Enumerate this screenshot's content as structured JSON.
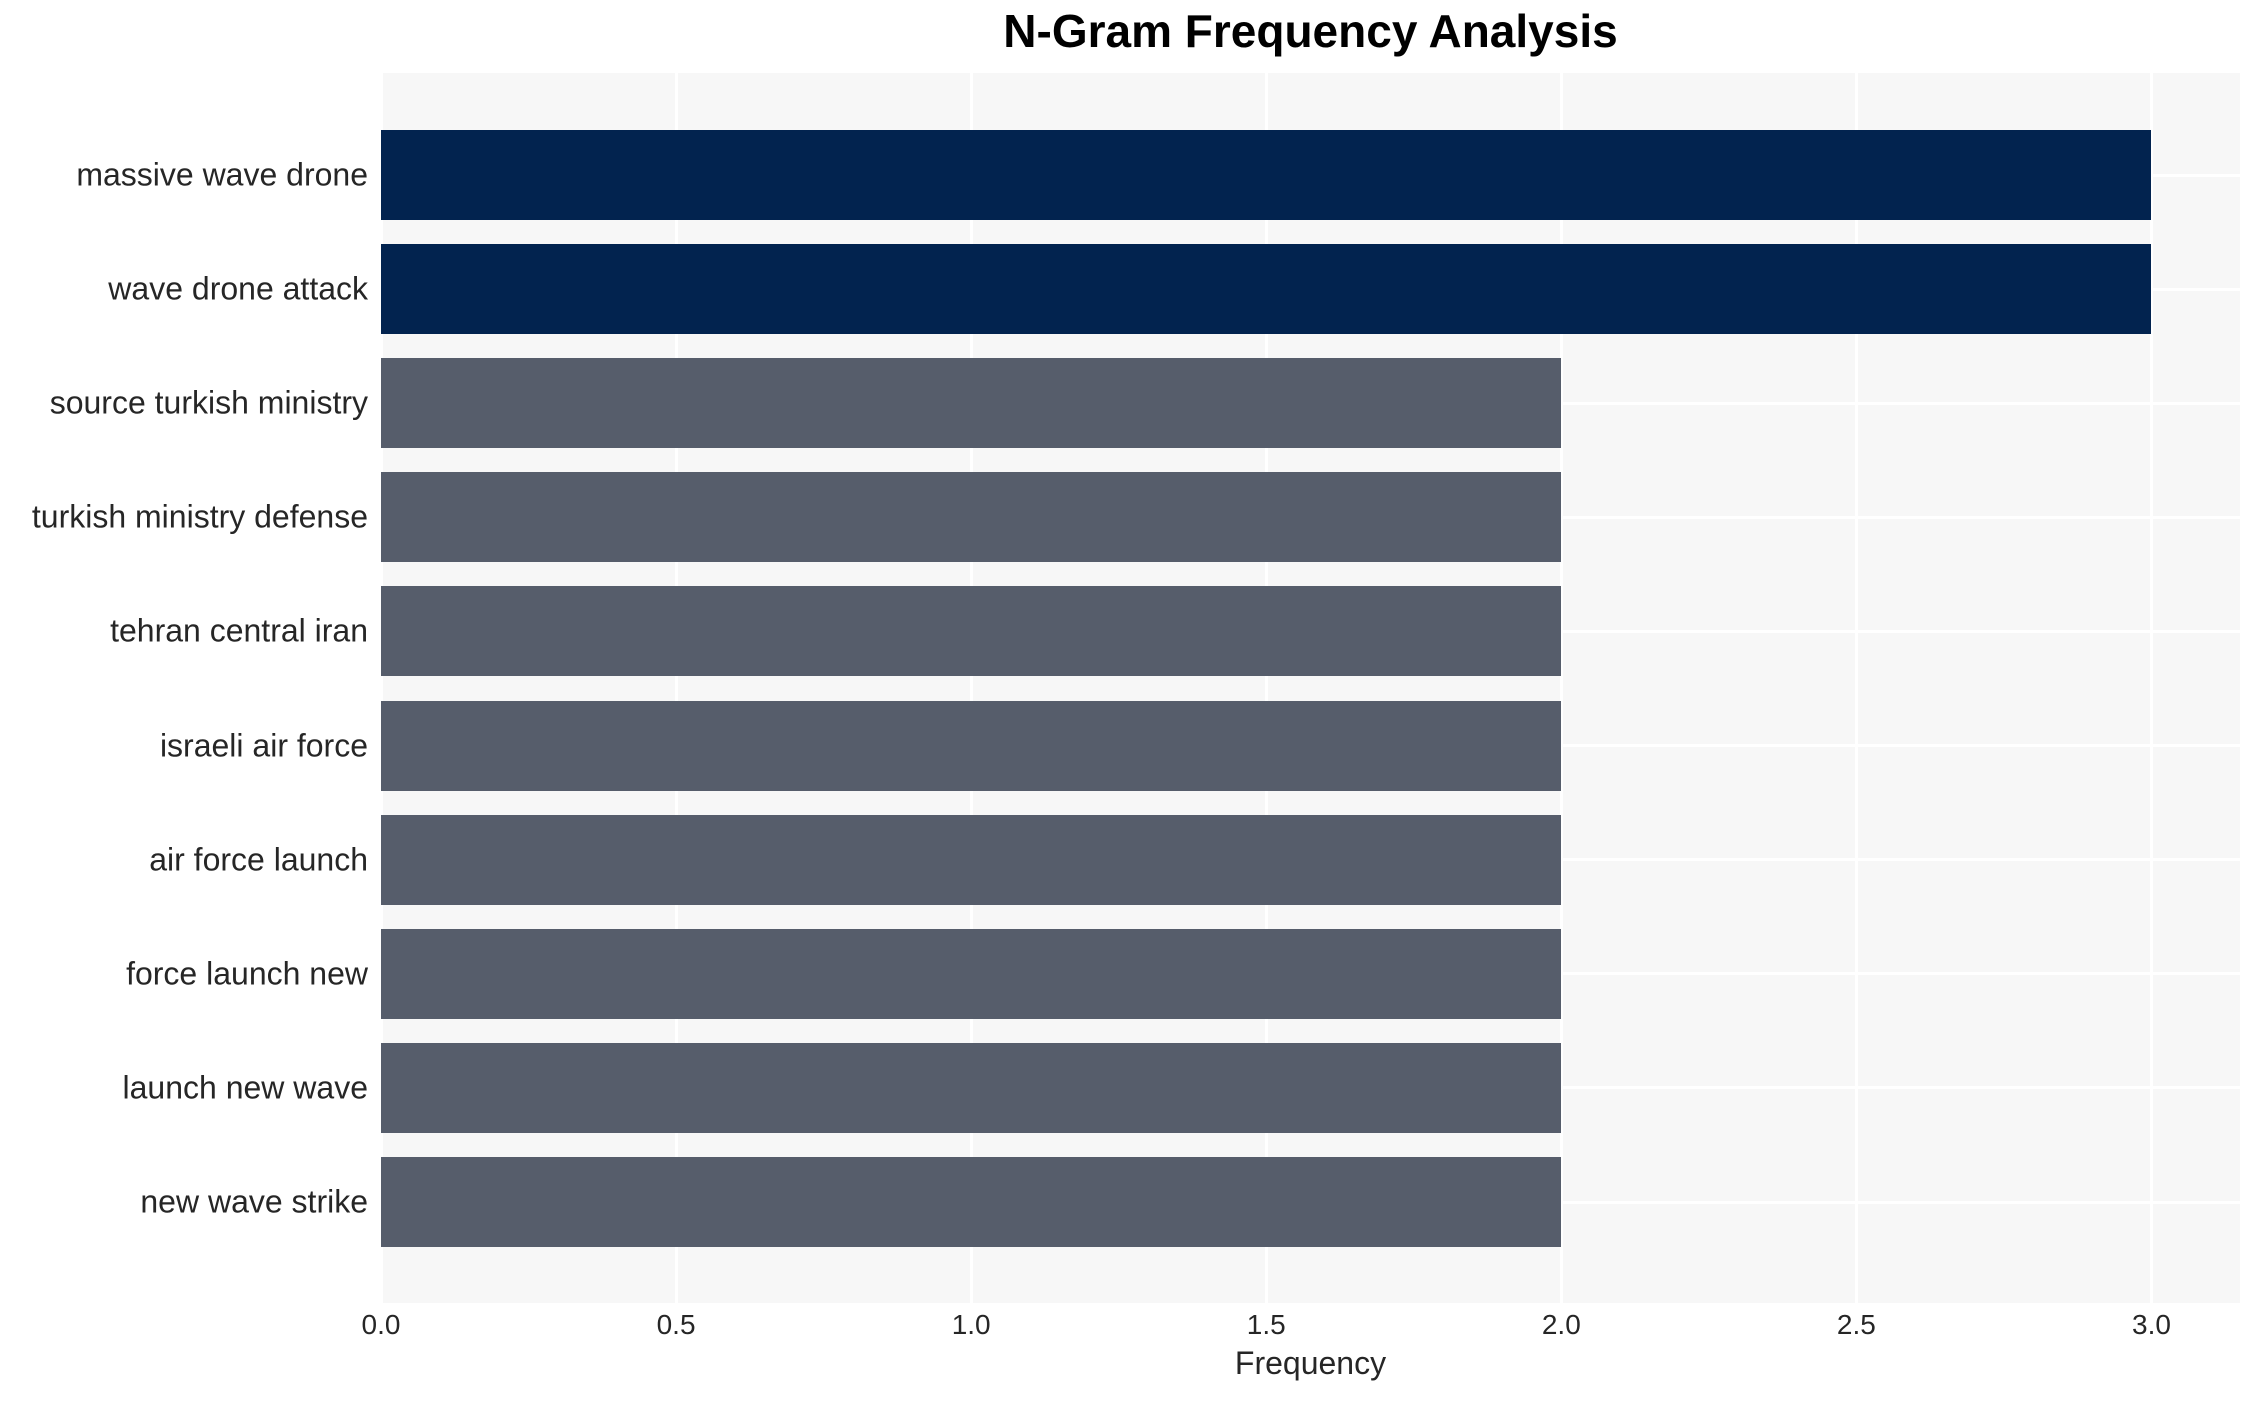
{
  "chart_data": {
    "type": "bar",
    "orientation": "horizontal",
    "title": "N-Gram Frequency Analysis",
    "xlabel": "Frequency",
    "ylabel": "",
    "categories": [
      "massive wave drone",
      "wave drone attack",
      "source turkish ministry",
      "turkish ministry defense",
      "tehran central iran",
      "israeli air force",
      "air force launch",
      "force launch new",
      "launch new wave",
      "new wave strike"
    ],
    "values": [
      3,
      3,
      2,
      2,
      2,
      2,
      2,
      2,
      2,
      2
    ],
    "bar_colors": [
      "#02234f",
      "#02234f",
      "#565d6b",
      "#565d6b",
      "#565d6b",
      "#565d6b",
      "#565d6b",
      "#565d6b",
      "#565d6b",
      "#565d6b"
    ],
    "xticks": {
      "labels": [
        "0.0",
        "0.5",
        "1.0",
        "1.5",
        "2.0",
        "2.5",
        "3.0"
      ],
      "values": [
        0,
        0.5,
        1.0,
        1.5,
        2.0,
        2.5,
        3.0
      ]
    },
    "xlim": [
      0,
      3.15
    ],
    "grid": true,
    "legend_visible": false,
    "colors": {
      "bar_high": "#02234f",
      "bar_default": "#565d6b",
      "plot_background": "#f7f7f7",
      "outer_background": "#ffffff",
      "grid_line": "#ffffff",
      "tick_text": "#262626",
      "title_text": "#000000"
    }
  }
}
